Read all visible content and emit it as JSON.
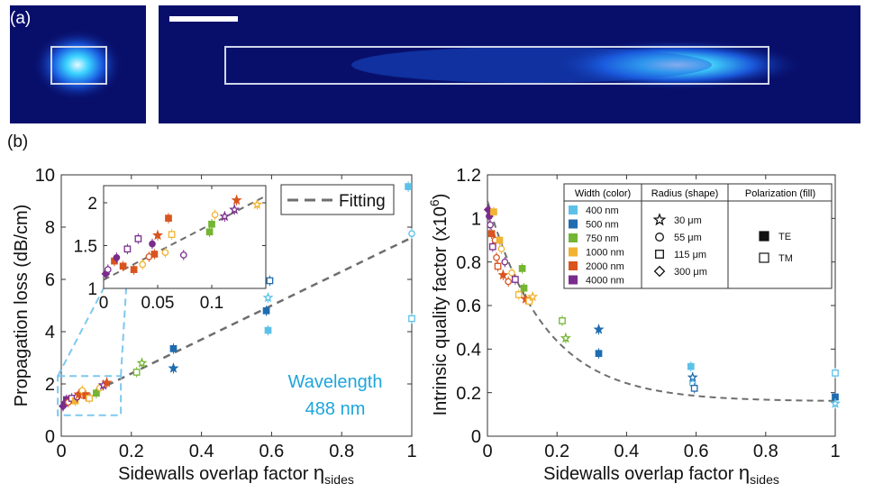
{
  "panel_labels": {
    "a": "(a)",
    "b": "(b)"
  },
  "chart_data": [
    {
      "type": "scatter",
      "title": "",
      "xlabel": "Sidewalls overlap factor",
      "xlabel_symbol": "η",
      "xlabel_sub": "sides",
      "ylabel": "Propagation loss (dB/cm)",
      "xlim": [
        0,
        1
      ],
      "ylim": [
        0,
        10
      ],
      "xticks": [
        0,
        0.2,
        0.4,
        0.6,
        0.8,
        1
      ],
      "xtick_labels": [
        "0",
        "0.2",
        "0.4",
        "0.6",
        "0.8",
        "1"
      ],
      "yticks": [
        0,
        2,
        4,
        6,
        8,
        10
      ],
      "ytick_labels": [
        "0",
        "2",
        "4",
        "6",
        "8",
        "10"
      ],
      "legend": {
        "label": "Fitting",
        "placement": "top-right"
      },
      "annotation": [
        "Wavelength",
        "488 nm"
      ],
      "fit_line": {
        "x": [
          0,
          1
        ],
        "y": [
          1.1,
          7.6
        ]
      },
      "zoom_box": {
        "x": [
          -0.01,
          0.17
        ],
        "y": [
          0.8,
          2.3
        ]
      },
      "points": [
        {
          "x": 0.005,
          "y": 1.15,
          "c": "purple",
          "s": "diamond",
          "f": "TE"
        },
        {
          "x": 0.01,
          "y": 1.25,
          "c": "purple",
          "s": "circle",
          "f": "TE"
        },
        {
          "x": 0.015,
          "y": 1.4,
          "c": "purple",
          "s": "square",
          "f": "TE"
        },
        {
          "x": 0.02,
          "y": 1.3,
          "c": "orange",
          "s": "circle",
          "f": "TM"
        },
        {
          "x": 0.03,
          "y": 1.45,
          "c": "purple",
          "s": "square",
          "f": "TM"
        },
        {
          "x": 0.04,
          "y": 1.35,
          "c": "yellow",
          "s": "square",
          "f": "TE"
        },
        {
          "x": 0.045,
          "y": 1.5,
          "c": "purple",
          "s": "circle",
          "f": "TM"
        },
        {
          "x": 0.05,
          "y": 1.6,
          "c": "orange",
          "s": "star",
          "f": "TE"
        },
        {
          "x": 0.06,
          "y": 1.75,
          "c": "yellow",
          "s": "circle",
          "f": "TM"
        },
        {
          "x": 0.07,
          "y": 1.55,
          "c": "orange",
          "s": "square",
          "f": "TE"
        },
        {
          "x": 0.08,
          "y": 1.45,
          "c": "yellow",
          "s": "square",
          "f": "TM"
        },
        {
          "x": 0.1,
          "y": 1.65,
          "c": "green",
          "s": "square",
          "f": "TE"
        },
        {
          "x": 0.11,
          "y": 1.85,
          "c": "yellow",
          "s": "circle",
          "f": "TM"
        },
        {
          "x": 0.12,
          "y": 1.95,
          "c": "purple",
          "s": "star",
          "f": "TM"
        },
        {
          "x": 0.13,
          "y": 2.05,
          "c": "orange",
          "s": "star",
          "f": "TE"
        },
        {
          "x": 0.215,
          "y": 2.45,
          "c": "green",
          "s": "square",
          "f": "TM"
        },
        {
          "x": 0.23,
          "y": 2.8,
          "c": "green",
          "s": "star",
          "f": "TM"
        },
        {
          "x": 0.32,
          "y": 3.35,
          "c": "darkblue",
          "s": "square",
          "f": "TE"
        },
        {
          "x": 0.32,
          "y": 2.6,
          "c": "darkblue",
          "s": "star",
          "f": "TE"
        },
        {
          "x": 0.585,
          "y": 4.8,
          "c": "darkblue",
          "s": "square",
          "f": "TE"
        },
        {
          "x": 0.59,
          "y": 4.05,
          "c": "lightblue",
          "s": "square",
          "f": "TE"
        },
        {
          "x": 0.59,
          "y": 5.3,
          "c": "lightblue",
          "s": "star",
          "f": "TM"
        },
        {
          "x": 0.595,
          "y": 5.95,
          "c": "darkblue",
          "s": "square",
          "f": "TM"
        },
        {
          "x": 0.99,
          "y": 9.55,
          "c": "lightblue",
          "s": "square",
          "f": "TE"
        },
        {
          "x": 1.0,
          "y": 7.75,
          "c": "lightblue",
          "s": "circle",
          "f": "TM"
        },
        {
          "x": 1.0,
          "y": 4.5,
          "c": "lightblue",
          "s": "square",
          "f": "TM"
        }
      ]
    },
    {
      "type": "scatter",
      "title": "",
      "xlabel": "",
      "ylabel": "",
      "xlim": [
        0,
        0.15
      ],
      "ylim": [
        1,
        2.2
      ],
      "xticks": [
        0,
        0.05,
        0.1
      ],
      "xtick_labels": [
        "0",
        "0.05",
        "0.1"
      ],
      "yticks": [
        1,
        1.5,
        2
      ],
      "ytick_labels": [
        "1",
        "1.5",
        "2"
      ],
      "fit_line": {
        "x": [
          0,
          0.15
        ],
        "y": [
          1.1,
          2.08
        ]
      },
      "points": [
        {
          "x": 0.002,
          "y": 1.17,
          "c": "purple",
          "s": "diamond",
          "f": "TE"
        },
        {
          "x": 0.004,
          "y": 1.22,
          "c": "purple",
          "s": "circle",
          "f": "TM"
        },
        {
          "x": 0.01,
          "y": 1.32,
          "c": "orange",
          "s": "square",
          "f": "TE"
        },
        {
          "x": 0.012,
          "y": 1.36,
          "c": "purple",
          "s": "circle",
          "f": "TE"
        },
        {
          "x": 0.018,
          "y": 1.26,
          "c": "orange",
          "s": "square",
          "f": "TE"
        },
        {
          "x": 0.022,
          "y": 1.46,
          "c": "purple",
          "s": "square",
          "f": "TM"
        },
        {
          "x": 0.028,
          "y": 1.22,
          "c": "orange",
          "s": "square",
          "f": "TE"
        },
        {
          "x": 0.032,
          "y": 1.58,
          "c": "purple",
          "s": "square",
          "f": "TM"
        },
        {
          "x": 0.036,
          "y": 1.28,
          "c": "yellow",
          "s": "circle",
          "f": "TM"
        },
        {
          "x": 0.042,
          "y": 1.37,
          "c": "orange",
          "s": "circle",
          "f": "TM"
        },
        {
          "x": 0.045,
          "y": 1.52,
          "c": "purple",
          "s": "circle",
          "f": "TE"
        },
        {
          "x": 0.047,
          "y": 1.4,
          "c": "orange",
          "s": "square",
          "f": "TE"
        },
        {
          "x": 0.05,
          "y": 1.62,
          "c": "orange",
          "s": "star",
          "f": "TE"
        },
        {
          "x": 0.057,
          "y": 1.42,
          "c": "yellow",
          "s": "circle",
          "f": "TM"
        },
        {
          "x": 0.06,
          "y": 1.82,
          "c": "orange",
          "s": "square",
          "f": "TE"
        },
        {
          "x": 0.063,
          "y": 1.63,
          "c": "yellow",
          "s": "square",
          "f": "TM"
        },
        {
          "x": 0.074,
          "y": 1.39,
          "c": "purple",
          "s": "circle",
          "f": "TM"
        },
        {
          "x": 0.098,
          "y": 1.66,
          "c": "green",
          "s": "square",
          "f": "TE"
        },
        {
          "x": 0.1,
          "y": 1.75,
          "c": "green",
          "s": "square",
          "f": "TE"
        },
        {
          "x": 0.103,
          "y": 1.86,
          "c": "yellow",
          "s": "circle",
          "f": "TM"
        },
        {
          "x": 0.112,
          "y": 1.84,
          "c": "purple",
          "s": "star",
          "f": "TM"
        },
        {
          "x": 0.121,
          "y": 1.92,
          "c": "purple",
          "s": "star",
          "f": "TM"
        },
        {
          "x": 0.123,
          "y": 2.03,
          "c": "orange",
          "s": "star",
          "f": "TE"
        },
        {
          "x": 0.142,
          "y": 1.98,
          "c": "yellow",
          "s": "star",
          "f": "TM"
        }
      ]
    },
    {
      "type": "scatter",
      "title": "",
      "xlabel": "Sidewalls overlap factor",
      "xlabel_symbol": "η",
      "xlabel_sub": "sides",
      "ylabel": "Intrinsic quality factor (x10",
      "ylabel_exp": "6",
      "ylabel_end": ")",
      "xlim": [
        0,
        1
      ],
      "ylim": [
        0,
        1.2
      ],
      "xticks": [
        0,
        0.2,
        0.4,
        0.6,
        0.8,
        1
      ],
      "xtick_labels": [
        "0",
        "0.2",
        "0.4",
        "0.6",
        "0.8",
        "1"
      ],
      "yticks": [
        0,
        0.2,
        0.4,
        0.6,
        0.8,
        1,
        1.2
      ],
      "ytick_labels": [
        "0",
        "0.2",
        "0.4",
        "0.6",
        "0.8",
        "1",
        "1.2"
      ],
      "fit_line": {
        "type": "exponential",
        "a": 0.92,
        "k": 6.0,
        "c": 0.16
      },
      "points": [
        {
          "x": 0.002,
          "y": 1.04,
          "c": "purple",
          "s": "diamond",
          "f": "TE"
        },
        {
          "x": 0.005,
          "y": 1.01,
          "c": "purple",
          "s": "circle",
          "f": "TE"
        },
        {
          "x": 0.008,
          "y": 0.97,
          "c": "purple",
          "s": "circle",
          "f": "TM"
        },
        {
          "x": 0.012,
          "y": 0.93,
          "c": "orange",
          "s": "square",
          "f": "TE"
        },
        {
          "x": 0.015,
          "y": 0.87,
          "c": "purple",
          "s": "square",
          "f": "TM"
        },
        {
          "x": 0.018,
          "y": 1.03,
          "c": "yellow",
          "s": "square",
          "f": "TE"
        },
        {
          "x": 0.022,
          "y": 0.9,
          "c": "orange",
          "s": "circle",
          "f": "TM"
        },
        {
          "x": 0.026,
          "y": 0.82,
          "c": "orange",
          "s": "circle",
          "f": "TM"
        },
        {
          "x": 0.03,
          "y": 0.78,
          "c": "orange",
          "s": "square",
          "f": "TM"
        },
        {
          "x": 0.035,
          "y": 0.9,
          "c": "yellow",
          "s": "square",
          "f": "TE"
        },
        {
          "x": 0.04,
          "y": 0.86,
          "c": "yellow",
          "s": "circle",
          "f": "TM"
        },
        {
          "x": 0.045,
          "y": 0.74,
          "c": "orange",
          "s": "star",
          "f": "TE"
        },
        {
          "x": 0.05,
          "y": 0.8,
          "c": "purple",
          "s": "circle",
          "f": "TM"
        },
        {
          "x": 0.06,
          "y": 0.71,
          "c": "orange",
          "s": "circle",
          "f": "TM"
        },
        {
          "x": 0.07,
          "y": 0.75,
          "c": "yellow",
          "s": "circle",
          "f": "TM"
        },
        {
          "x": 0.08,
          "y": 0.72,
          "c": "purple",
          "s": "square",
          "f": "TM"
        },
        {
          "x": 0.09,
          "y": 0.65,
          "c": "yellow",
          "s": "square",
          "f": "TM"
        },
        {
          "x": 0.1,
          "y": 0.77,
          "c": "green",
          "s": "square",
          "f": "TE"
        },
        {
          "x": 0.105,
          "y": 0.68,
          "c": "green",
          "s": "square",
          "f": "TE"
        },
        {
          "x": 0.11,
          "y": 0.63,
          "c": "orange",
          "s": "star",
          "f": "TE"
        },
        {
          "x": 0.12,
          "y": 0.62,
          "c": "yellow",
          "s": "square",
          "f": "TM"
        },
        {
          "x": 0.13,
          "y": 0.64,
          "c": "yellow",
          "s": "star",
          "f": "TM"
        },
        {
          "x": 0.215,
          "y": 0.53,
          "c": "green",
          "s": "square",
          "f": "TM"
        },
        {
          "x": 0.225,
          "y": 0.45,
          "c": "green",
          "s": "star",
          "f": "TM"
        },
        {
          "x": 0.32,
          "y": 0.49,
          "c": "darkblue",
          "s": "star",
          "f": "TE"
        },
        {
          "x": 0.32,
          "y": 0.38,
          "c": "darkblue",
          "s": "square",
          "f": "TE"
        },
        {
          "x": 0.585,
          "y": 0.32,
          "c": "lightblue",
          "s": "square",
          "f": "TE"
        },
        {
          "x": 0.59,
          "y": 0.27,
          "c": "darkblue",
          "s": "star",
          "f": "TM"
        },
        {
          "x": 0.59,
          "y": 0.24,
          "c": "lightblue",
          "s": "circle",
          "f": "TM"
        },
        {
          "x": 0.595,
          "y": 0.22,
          "c": "darkblue",
          "s": "square",
          "f": "TM"
        },
        {
          "x": 1.0,
          "y": 0.29,
          "c": "lightblue",
          "s": "square",
          "f": "TM"
        },
        {
          "x": 1.0,
          "y": 0.18,
          "c": "darkblue",
          "s": "square",
          "f": "TE"
        },
        {
          "x": 1.0,
          "y": 0.15,
          "c": "lightblue",
          "s": "star",
          "f": "TM"
        }
      ]
    }
  ],
  "right_legend": {
    "headers": [
      "Width (color)",
      "Radius (shape)",
      "Polarization (fill)"
    ],
    "widths": [
      {
        "label": "400 nm",
        "color": "#5cc1e8"
      },
      {
        "label": "500 nm",
        "color": "#1f6cb0"
      },
      {
        "label": "750 nm",
        "color": "#74b532"
      },
      {
        "label": "1000 nm",
        "color": "#f2b332"
      },
      {
        "label": "2000 nm",
        "color": "#d9541e"
      },
      {
        "label": "4000 nm",
        "color": "#7a2c8c"
      }
    ],
    "radii": [
      {
        "label": "30 μm",
        "shape": "star"
      },
      {
        "label": "55 μm",
        "shape": "circle"
      },
      {
        "label": "115 μm",
        "shape": "square"
      },
      {
        "label": "300 μm",
        "shape": "diamond"
      }
    ],
    "polarizations": [
      {
        "label": "TE",
        "fill": "filled"
      },
      {
        "label": "TM",
        "fill": "open"
      }
    ]
  },
  "colors": {
    "lightblue": "#5cc1e8",
    "darkblue": "#1f6cb0",
    "green": "#74b532",
    "yellow": "#f2b332",
    "orange": "#d9541e",
    "purple": "#7a2c8c",
    "fit": "#6e6e6e",
    "annotation": "#1ea5dc",
    "zoom": "#7ec8ee"
  }
}
